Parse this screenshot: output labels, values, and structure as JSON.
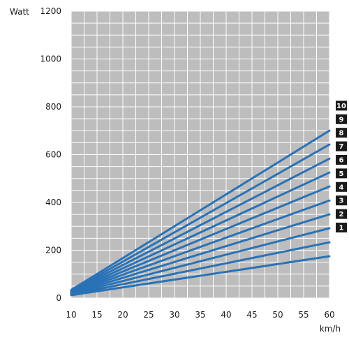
{
  "chart_data": {
    "type": "line",
    "title": "",
    "xlabel": "km/h",
    "ylabel": "Watt",
    "xlim": [
      10,
      60
    ],
    "ylim": [
      0,
      1200
    ],
    "x_ticks": [
      "10",
      "15",
      "20",
      "25",
      "30",
      "35",
      "40",
      "45",
      "50",
      "55",
      "60"
    ],
    "y_ticks": [
      "0",
      "200",
      "400",
      "600",
      "800",
      "1000",
      "1200"
    ],
    "grid": true,
    "line_color": "#2a72b6",
    "plot_background": "#bdbdbd",
    "label_badge_color": "#1a1a1a",
    "legend_placement": "right",
    "series": [
      {
        "name": "1",
        "x": [
          10,
          60
        ],
        "y": [
          12,
          175
        ]
      },
      {
        "name": "2",
        "x": [
          10,
          60
        ],
        "y": [
          14,
          233
        ]
      },
      {
        "name": "3",
        "x": [
          10,
          60
        ],
        "y": [
          16,
          292
        ]
      },
      {
        "name": "4",
        "x": [
          10,
          60
        ],
        "y": [
          18,
          350
        ]
      },
      {
        "name": "5",
        "x": [
          10,
          60
        ],
        "y": [
          20,
          408
        ]
      },
      {
        "name": "6",
        "x": [
          10,
          60
        ],
        "y": [
          22,
          467
        ]
      },
      {
        "name": "7",
        "x": [
          10,
          60
        ],
        "y": [
          24,
          525
        ]
      },
      {
        "name": "8",
        "x": [
          10,
          60
        ],
        "y": [
          27,
          583
        ]
      },
      {
        "name": "9",
        "x": [
          10,
          60
        ],
        "y": [
          30,
          642
        ]
      },
      {
        "name": "10",
        "x": [
          10,
          60
        ],
        "y": [
          34,
          700
        ]
      }
    ]
  }
}
